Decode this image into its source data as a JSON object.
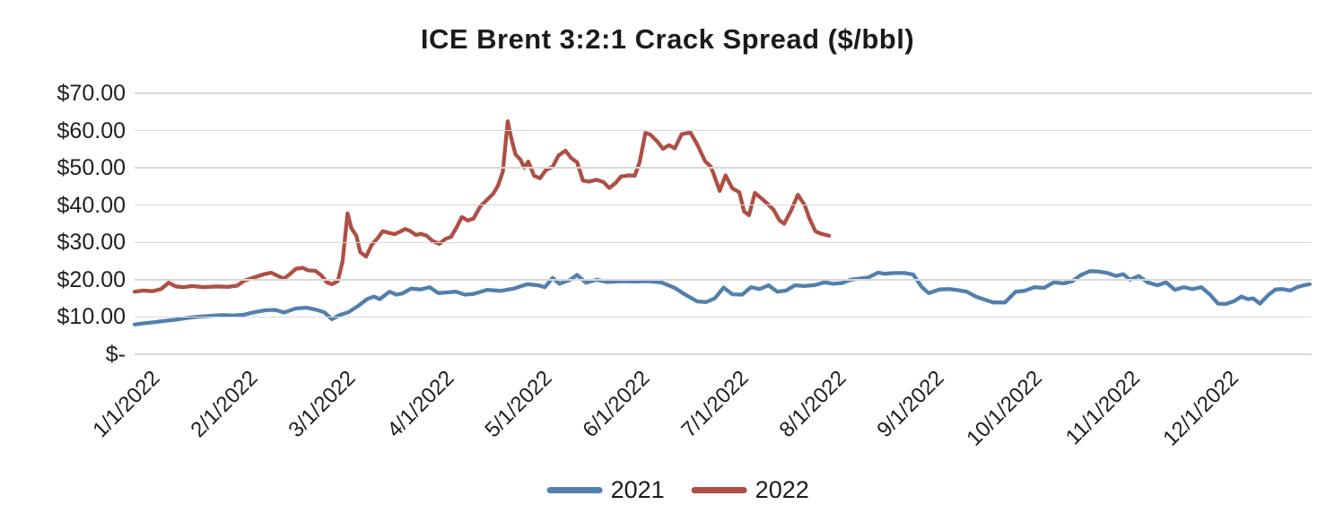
{
  "title": "ICE Brent 3:2:1 Crack Spread ($/bbl)",
  "chart_data": {
    "type": "line",
    "title": "ICE Brent 3:2:1 Crack Spread ($/bbl)",
    "xlabel": "",
    "ylabel": "",
    "ylim": [
      0,
      70
    ],
    "y_tick_labels": [
      "$70.00",
      "$60.00",
      "$50.00",
      "$40.00",
      "$30.00",
      "$20.00",
      "$10.00",
      "$-"
    ],
    "x_tick_labels": [
      "1/1/2022",
      "2/1/2022",
      "3/1/2022",
      "4/1/2022",
      "5/1/2022",
      "6/1/2022",
      "7/1/2022",
      "8/1/2022",
      "9/1/2022",
      "10/1/2022",
      "11/1/2022",
      "12/1/2022"
    ],
    "x_unit": "months since 1/1 (0 = Jan 1, 1 = Feb 1, ...)",
    "x_domain": [
      0,
      12.05
    ],
    "grid": "horizontal",
    "legend_position": "bottom",
    "colors": {
      "series_2021": "#527FAE",
      "series_2022": "#AE4F45",
      "gridline": "#d8d8d8"
    },
    "series": [
      {
        "name": "2021",
        "color": "#527FAE",
        "points": [
          [
            0,
            8.0
          ],
          [
            0.09,
            8.3
          ],
          [
            0.2,
            8.6
          ],
          [
            0.32,
            9.0
          ],
          [
            0.43,
            9.3
          ],
          [
            0.55,
            9.8
          ],
          [
            0.66,
            10.1
          ],
          [
            0.78,
            10.3
          ],
          [
            0.9,
            10.5
          ],
          [
            1.01,
            10.4
          ],
          [
            1.12,
            10.6
          ],
          [
            1.23,
            11.3
          ],
          [
            1.34,
            11.8
          ],
          [
            1.44,
            11.9
          ],
          [
            1.53,
            11.2
          ],
          [
            1.65,
            12.3
          ],
          [
            1.76,
            12.5
          ],
          [
            1.85,
            12.0
          ],
          [
            1.94,
            11.3
          ],
          [
            2.02,
            9.4
          ],
          [
            2.1,
            10.5
          ],
          [
            2.19,
            11.3
          ],
          [
            2.29,
            13.0
          ],
          [
            2.38,
            14.8
          ],
          [
            2.45,
            15.5
          ],
          [
            2.51,
            14.8
          ],
          [
            2.61,
            16.8
          ],
          [
            2.68,
            16.0
          ],
          [
            2.74,
            16.3
          ],
          [
            2.83,
            17.6
          ],
          [
            2.93,
            17.4
          ],
          [
            3.02,
            18.0
          ],
          [
            3.11,
            16.4
          ],
          [
            3.2,
            16.6
          ],
          [
            3.29,
            16.8
          ],
          [
            3.38,
            16.0
          ],
          [
            3.47,
            16.2
          ],
          [
            3.61,
            17.3
          ],
          [
            3.75,
            17.0
          ],
          [
            3.88,
            17.6
          ],
          [
            4.02,
            18.8
          ],
          [
            4.13,
            18.5
          ],
          [
            4.2,
            18.0
          ],
          [
            4.28,
            20.5
          ],
          [
            4.35,
            18.9
          ],
          [
            4.46,
            20.0
          ],
          [
            4.53,
            21.3
          ],
          [
            4.62,
            19.2
          ],
          [
            4.73,
            20.0
          ],
          [
            4.84,
            19.4
          ],
          [
            4.98,
            19.6
          ],
          [
            5.12,
            19.5
          ],
          [
            5.26,
            19.6
          ],
          [
            5.39,
            19.3
          ],
          [
            5.53,
            17.8
          ],
          [
            5.65,
            15.8
          ],
          [
            5.76,
            14.2
          ],
          [
            5.85,
            14.0
          ],
          [
            5.94,
            15.0
          ],
          [
            6.03,
            17.9
          ],
          [
            6.12,
            16.1
          ],
          [
            6.22,
            16.0
          ],
          [
            6.31,
            18.0
          ],
          [
            6.4,
            17.5
          ],
          [
            6.49,
            18.5
          ],
          [
            6.58,
            16.8
          ],
          [
            6.67,
            17.1
          ],
          [
            6.76,
            18.5
          ],
          [
            6.86,
            18.3
          ],
          [
            6.97,
            18.6
          ],
          [
            7.06,
            19.3
          ],
          [
            7.15,
            18.9
          ],
          [
            7.24,
            19.1
          ],
          [
            7.33,
            20.0
          ],
          [
            7.42,
            20.3
          ],
          [
            7.51,
            20.6
          ],
          [
            7.61,
            21.9
          ],
          [
            7.68,
            21.6
          ],
          [
            7.77,
            21.8
          ],
          [
            7.88,
            21.8
          ],
          [
            7.97,
            21.4
          ],
          [
            8.06,
            18.0
          ],
          [
            8.13,
            16.4
          ],
          [
            8.24,
            17.4
          ],
          [
            8.34,
            17.5
          ],
          [
            8.43,
            17.2
          ],
          [
            8.52,
            16.8
          ],
          [
            8.61,
            15.5
          ],
          [
            8.7,
            14.7
          ],
          [
            8.79,
            13.9
          ],
          [
            8.91,
            13.9
          ],
          [
            9.02,
            16.8
          ],
          [
            9.11,
            17.0
          ],
          [
            9.21,
            18.0
          ],
          [
            9.31,
            17.8
          ],
          [
            9.41,
            19.3
          ],
          [
            9.51,
            19.0
          ],
          [
            9.6,
            19.6
          ],
          [
            9.69,
            21.3
          ],
          [
            9.78,
            22.3
          ],
          [
            9.87,
            22.2
          ],
          [
            9.96,
            21.8
          ],
          [
            10.05,
            21.0
          ],
          [
            10.12,
            21.5
          ],
          [
            10.19,
            20.0
          ],
          [
            10.28,
            21.0
          ],
          [
            10.37,
            19.3
          ],
          [
            10.47,
            18.5
          ],
          [
            10.56,
            19.3
          ],
          [
            10.65,
            17.3
          ],
          [
            10.74,
            18.0
          ],
          [
            10.83,
            17.5
          ],
          [
            10.92,
            18.0
          ],
          [
            11.01,
            16.0
          ],
          [
            11.09,
            13.6
          ],
          [
            11.17,
            13.5
          ],
          [
            11.26,
            14.3
          ],
          [
            11.33,
            15.5
          ],
          [
            11.4,
            14.8
          ],
          [
            11.45,
            15.0
          ],
          [
            11.52,
            13.6
          ],
          [
            11.61,
            16.0
          ],
          [
            11.68,
            17.4
          ],
          [
            11.75,
            17.5
          ],
          [
            11.83,
            17.1
          ],
          [
            11.9,
            18.0
          ],
          [
            11.97,
            18.5
          ],
          [
            12.03,
            18.8
          ]
        ]
      },
      {
        "name": "2022",
        "color": "#AE4F45",
        "points": [
          [
            0,
            16.8
          ],
          [
            0.09,
            17.1
          ],
          [
            0.18,
            16.9
          ],
          [
            0.27,
            17.5
          ],
          [
            0.35,
            19.2
          ],
          [
            0.42,
            18.2
          ],
          [
            0.5,
            18.0
          ],
          [
            0.59,
            18.3
          ],
          [
            0.71,
            18.0
          ],
          [
            0.84,
            18.2
          ],
          [
            0.96,
            18.1
          ],
          [
            1.05,
            18.4
          ],
          [
            1.12,
            19.7
          ],
          [
            1.2,
            20.4
          ],
          [
            1.26,
            20.9
          ],
          [
            1.33,
            21.5
          ],
          [
            1.4,
            21.9
          ],
          [
            1.46,
            21.1
          ],
          [
            1.53,
            20.3
          ],
          [
            1.59,
            21.5
          ],
          [
            1.65,
            22.9
          ],
          [
            1.72,
            23.2
          ],
          [
            1.78,
            22.5
          ],
          [
            1.85,
            22.4
          ],
          [
            1.91,
            21.2
          ],
          [
            1.97,
            19.3
          ],
          [
            2.02,
            18.8
          ],
          [
            2.08,
            19.6
          ],
          [
            2.13,
            25.0
          ],
          [
            2.18,
            37.8
          ],
          [
            2.22,
            33.8
          ],
          [
            2.27,
            31.8
          ],
          [
            2.31,
            27.4
          ],
          [
            2.37,
            26.2
          ],
          [
            2.43,
            29.5
          ],
          [
            2.49,
            31.2
          ],
          [
            2.54,
            33.0
          ],
          [
            2.6,
            32.6
          ],
          [
            2.66,
            32.2
          ],
          [
            2.72,
            32.9
          ],
          [
            2.77,
            33.6
          ],
          [
            2.82,
            33.1
          ],
          [
            2.88,
            32.0
          ],
          [
            2.93,
            32.3
          ],
          [
            2.99,
            31.8
          ],
          [
            3.05,
            30.4
          ],
          [
            3.12,
            29.6
          ],
          [
            3.18,
            30.9
          ],
          [
            3.24,
            31.5
          ],
          [
            3.3,
            34.2
          ],
          [
            3.35,
            36.8
          ],
          [
            3.41,
            35.9
          ],
          [
            3.47,
            36.4
          ],
          [
            3.54,
            39.7
          ],
          [
            3.6,
            41.2
          ],
          [
            3.67,
            43.0
          ],
          [
            3.72,
            45.2
          ],
          [
            3.77,
            49.0
          ],
          [
            3.82,
            62.5
          ],
          [
            3.86,
            57.5
          ],
          [
            3.9,
            53.6
          ],
          [
            3.95,
            52.2
          ],
          [
            3.99,
            50.0
          ],
          [
            4.03,
            51.7
          ],
          [
            4.09,
            47.9
          ],
          [
            4.15,
            47.2
          ],
          [
            4.21,
            49.4
          ],
          [
            4.28,
            50.3
          ],
          [
            4.34,
            53.3
          ],
          [
            4.41,
            54.6
          ],
          [
            4.47,
            52.6
          ],
          [
            4.53,
            51.5
          ],
          [
            4.59,
            46.6
          ],
          [
            4.65,
            46.3
          ],
          [
            4.73,
            46.8
          ],
          [
            4.8,
            46.2
          ],
          [
            4.86,
            44.6
          ],
          [
            4.93,
            46.1
          ],
          [
            4.98,
            47.7
          ],
          [
            5.06,
            48.0
          ],
          [
            5.12,
            47.9
          ],
          [
            5.17,
            51.5
          ],
          [
            5.23,
            59.4
          ],
          [
            5.28,
            58.9
          ],
          [
            5.35,
            57.1
          ],
          [
            5.41,
            55.1
          ],
          [
            5.47,
            56.1
          ],
          [
            5.53,
            55.2
          ],
          [
            5.6,
            59.0
          ],
          [
            5.69,
            59.5
          ],
          [
            5.76,
            56.3
          ],
          [
            5.84,
            51.8
          ],
          [
            5.9,
            50.3
          ],
          [
            5.94,
            47.5
          ],
          [
            5.99,
            43.8
          ],
          [
            6.05,
            48.0
          ],
          [
            6.12,
            44.5
          ],
          [
            6.19,
            43.5
          ],
          [
            6.24,
            38.3
          ],
          [
            6.29,
            37.3
          ],
          [
            6.35,
            43.3
          ],
          [
            6.44,
            41.3
          ],
          [
            6.54,
            38.8
          ],
          [
            6.6,
            36.0
          ],
          [
            6.65,
            35.0
          ],
          [
            6.72,
            38.5
          ],
          [
            6.79,
            42.8
          ],
          [
            6.86,
            40.0
          ],
          [
            6.91,
            36.3
          ],
          [
            6.97,
            33.0
          ],
          [
            7.02,
            32.4
          ],
          [
            7.11,
            31.8
          ]
        ]
      }
    ]
  },
  "legend": {
    "items": [
      {
        "label": "2021",
        "color": "#527FAE"
      },
      {
        "label": "2022",
        "color": "#AE4F45"
      }
    ]
  }
}
